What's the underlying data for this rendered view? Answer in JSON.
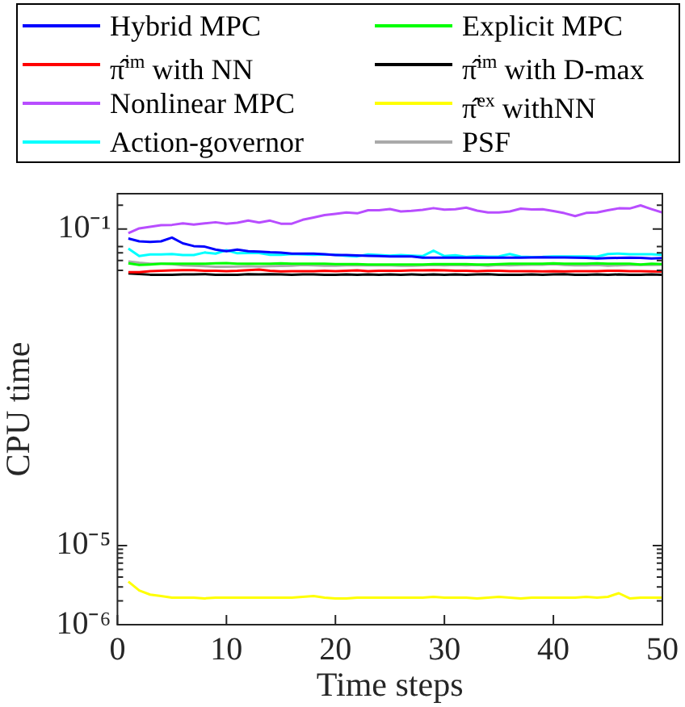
{
  "chart_data": {
    "type": "line",
    "xlabel": "Time steps",
    "ylabel": "CPU time",
    "legend": "top",
    "log": true,
    "grid": false,
    "x": [
      1,
      2,
      3,
      4,
      5,
      6,
      7,
      8,
      9,
      10,
      11,
      12,
      13,
      14,
      15,
      16,
      17,
      18,
      19,
      20,
      21,
      22,
      23,
      24,
      25,
      26,
      27,
      28,
      29,
      30,
      31,
      32,
      33,
      34,
      35,
      36,
      37,
      38,
      39,
      40,
      41,
      42,
      43,
      44,
      45,
      46,
      47,
      48,
      49,
      50
    ],
    "xlim": [
      0,
      50
    ],
    "xticks": [
      0,
      10,
      20,
      30,
      40,
      50
    ],
    "ylim": [
      1e-06,
      0.28
    ],
    "yticks": [
      {
        "value": 1e-06,
        "label": "10⁻⁶"
      },
      {
        "value": 2e-06,
        "label": null
      },
      {
        "value": 3e-06,
        "label": null
      },
      {
        "value": 4e-06,
        "label": null
      },
      {
        "value": 5e-06,
        "label": null
      },
      {
        "value": 6e-06,
        "label": null
      },
      {
        "value": 7e-06,
        "label": null
      },
      {
        "value": 8e-06,
        "label": null
      },
      {
        "value": 9e-06,
        "label": null
      },
      {
        "value": 1e-05,
        "label": "10⁻⁵"
      },
      {
        "value": 0.03,
        "label": null
      },
      {
        "value": 0.04,
        "label": null
      },
      {
        "value": 0.05,
        "label": null
      },
      {
        "value": 0.06,
        "label": null
      },
      {
        "value": 0.1,
        "label": "10⁻¹"
      },
      {
        "value": 0.2,
        "label": null
      }
    ],
    "series": [
      {
        "name": "Hybrid MPC",
        "color": "#0000ff",
        "values": [
          0.076,
          0.07,
          0.069,
          0.07,
          0.078,
          0.066,
          0.061,
          0.06,
          0.055,
          0.0525,
          0.055,
          0.0525,
          0.052,
          0.051,
          0.0505,
          0.049,
          0.049,
          0.049,
          0.048,
          0.047,
          0.047,
          0.0465,
          0.046,
          0.0455,
          0.045,
          0.045,
          0.045,
          0.0435,
          0.0435,
          0.0435,
          0.0435,
          0.0435,
          0.0435,
          0.0435,
          0.0435,
          0.0435,
          0.0435,
          0.0437,
          0.044,
          0.0437,
          0.0437,
          0.0435,
          0.0432,
          0.0426,
          0.043,
          0.0432,
          0.0435,
          0.0432,
          0.0426,
          0.043
        ]
      },
      {
        "name": "Explicit MPC",
        "color": "#00ff00",
        "values": [
          0.037,
          0.0352,
          0.0357,
          0.0364,
          0.0364,
          0.0364,
          0.0364,
          0.0364,
          0.0369,
          0.0372,
          0.0364,
          0.0364,
          0.0364,
          0.0364,
          0.0369,
          0.0364,
          0.0364,
          0.0364,
          0.0364,
          0.036,
          0.036,
          0.036,
          0.0357,
          0.0357,
          0.0357,
          0.0357,
          0.0357,
          0.0357,
          0.036,
          0.036,
          0.036,
          0.036,
          0.0357,
          0.0357,
          0.036,
          0.0364,
          0.0364,
          0.0364,
          0.0364,
          0.0369,
          0.0364,
          0.0364,
          0.0364,
          0.0369,
          0.0364,
          0.0364,
          0.0364,
          0.0357,
          0.0364,
          0.036
        ]
      },
      {
        "name": "π̂$^{im}$ with NN",
        "color": "#ff0000",
        "values": [
          0.0285,
          0.0285,
          0.0294,
          0.0297,
          0.03,
          0.0303,
          0.0303,
          0.0297,
          0.0297,
          0.0294,
          0.0297,
          0.0303,
          0.0308,
          0.0297,
          0.0292,
          0.0294,
          0.0294,
          0.0294,
          0.0297,
          0.0294,
          0.0297,
          0.03,
          0.0294,
          0.0297,
          0.0297,
          0.0297,
          0.03,
          0.03,
          0.0303,
          0.03,
          0.0297,
          0.0297,
          0.0294,
          0.0297,
          0.0297,
          0.0294,
          0.0294,
          0.0294,
          0.0292,
          0.0294,
          0.0292,
          0.0294,
          0.0294,
          0.0294,
          0.0297,
          0.0297,
          0.0294,
          0.0294,
          0.0292,
          0.029
        ]
      },
      {
        "name": "π̂$^{im}$ with D-max",
        "color": "#000000",
        "values": [
          0.0275,
          0.027,
          0.0265,
          0.0265,
          0.0265,
          0.0267,
          0.0267,
          0.0269,
          0.0265,
          0.0265,
          0.0265,
          0.0269,
          0.0267,
          0.0269,
          0.0267,
          0.0265,
          0.0267,
          0.0267,
          0.0265,
          0.0265,
          0.0267,
          0.0265,
          0.0267,
          0.0265,
          0.0267,
          0.0265,
          0.0267,
          0.0265,
          0.0267,
          0.0265,
          0.0267,
          0.0265,
          0.0267,
          0.0269,
          0.0265,
          0.0265,
          0.0265,
          0.0267,
          0.0265,
          0.0267,
          0.0269,
          0.0265,
          0.0265,
          0.0267,
          0.0265,
          0.0267,
          0.0265,
          0.0265,
          0.0267,
          0.0265
        ]
      },
      {
        "name": "Nonlinear MPC",
        "color": "#b84dff",
        "values": [
          0.089,
          0.102,
          0.107,
          0.112,
          0.113,
          0.118,
          0.114,
          0.118,
          0.122,
          0.117,
          0.12,
          0.128,
          0.121,
          0.128,
          0.117,
          0.117,
          0.131,
          0.14,
          0.15,
          0.156,
          0.162,
          0.158,
          0.173,
          0.173,
          0.179,
          0.167,
          0.17,
          0.175,
          0.184,
          0.176,
          0.178,
          0.187,
          0.171,
          0.162,
          0.162,
          0.167,
          0.181,
          0.177,
          0.178,
          0.169,
          0.159,
          0.146,
          0.16,
          0.162,
          0.173,
          0.183,
          0.182,
          0.199,
          0.179,
          0.162
        ]
      },
      {
        "name": "π̂$^{ex}$ withNN",
        "color": "#ffff00",
        "values": [
          3.5e-06,
          2.7e-06,
          2.4e-06,
          2.3e-06,
          2.2e-06,
          2.2e-06,
          2.2e-06,
          2.15e-06,
          2.2e-06,
          2.2e-06,
          2.2e-06,
          2.2e-06,
          2.2e-06,
          2.2e-06,
          2.2e-06,
          2.2e-06,
          2.25e-06,
          2.3e-06,
          2.2e-06,
          2.15e-06,
          2.15e-06,
          2.2e-06,
          2.2e-06,
          2.2e-06,
          2.2e-06,
          2.2e-06,
          2.2e-06,
          2.2e-06,
          2.25e-06,
          2.2e-06,
          2.2e-06,
          2.2e-06,
          2.15e-06,
          2.2e-06,
          2.25e-06,
          2.2e-06,
          2.15e-06,
          2.2e-06,
          2.2e-06,
          2.2e-06,
          2.2e-06,
          2.2e-06,
          2.25e-06,
          2.2e-06,
          2.25e-06,
          2.5e-06,
          2.15e-06,
          2.2e-06,
          2.2e-06,
          2.2e-06
        ]
      },
      {
        "name": "Action-governor",
        "color": "#00ffff",
        "values": [
          0.0566,
          0.0456,
          0.0477,
          0.0477,
          0.0484,
          0.0469,
          0.0469,
          0.0506,
          0.049,
          0.0541,
          0.0494,
          0.0499,
          0.0499,
          0.0473,
          0.0473,
          0.0484,
          0.0477,
          0.0473,
          0.0477,
          0.0473,
          0.046,
          0.0452,
          0.0477,
          0.0469,
          0.0462,
          0.0469,
          0.0462,
          0.0456,
          0.0534,
          0.0456,
          0.0467,
          0.0446,
          0.0456,
          0.0448,
          0.0452,
          0.0484,
          0.0448,
          0.0444,
          0.0446,
          0.0452,
          0.0452,
          0.045,
          0.045,
          0.0448,
          0.0484,
          0.049,
          0.0481,
          0.0481,
          0.0481,
          0.0473
        ]
      },
      {
        "name": "PSF",
        "color": "#aaaaaa",
        "values": [
          0.039,
          0.0375,
          0.0364,
          0.0364,
          0.036,
          0.0348,
          0.0345,
          0.034,
          0.0334,
          0.0334,
          0.0337,
          0.034,
          0.0337,
          0.034,
          0.0342,
          0.0345,
          0.0352,
          0.0348,
          0.0345,
          0.0345,
          0.0348,
          0.0348,
          0.0348,
          0.0348,
          0.0348,
          0.0345,
          0.0345,
          0.0348,
          0.0352,
          0.0348,
          0.0352,
          0.0348,
          0.0352,
          0.0345,
          0.0352,
          0.0348,
          0.0352,
          0.0355,
          0.0355,
          0.036,
          0.0352,
          0.0348,
          0.0348,
          0.0352,
          0.0345,
          0.0348,
          0.0352,
          0.0355,
          0.0352,
          0.0355
        ]
      }
    ]
  }
}
